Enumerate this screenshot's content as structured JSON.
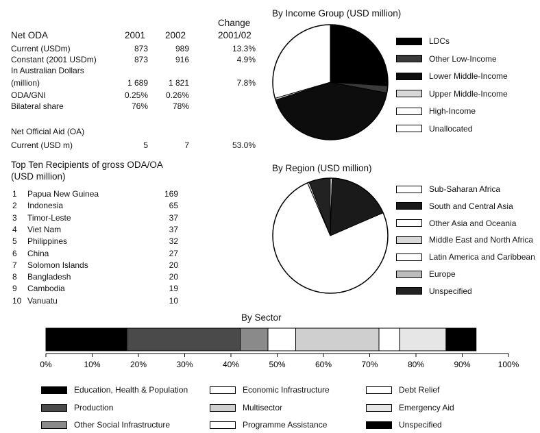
{
  "odaTable": {
    "header_change": "Change",
    "header_label": "Net ODA",
    "header_year1": "2001",
    "header_year2": "2002",
    "header_change_period": "2001/02",
    "rows": [
      {
        "label": "Current (USDm)",
        "v2001": "873",
        "v2002": "989",
        "change": "13.3%"
      },
      {
        "label": "Constant (2001 USDm)",
        "v2001": "873",
        "v2002": "916",
        "change": "4.9%"
      },
      {
        "label": "In Australian Dollars",
        "v2001": "",
        "v2002": "",
        "change": ""
      },
      {
        "label": "(million)",
        "v2001": "1 689",
        "v2002": "1 821",
        "change": "7.8%"
      },
      {
        "label": "ODA/GNI",
        "v2001": "0.25%",
        "v2002": "0.26%",
        "change": ""
      },
      {
        "label": "Bilateral share",
        "v2001": "76%",
        "v2002": "78%",
        "change": ""
      }
    ],
    "oa_title": "Net Official Aid (OA)",
    "oa_row": {
      "label": "Current (USD m)",
      "v2001": "5",
      "v2002": "7",
      "change": "53.0%"
    }
  },
  "recipients": {
    "title_line1": "Top Ten Recipients of gross ODA/OA",
    "title_line2": "(USD million)",
    "items": [
      {
        "rank": "1",
        "name": "Papua New Guinea",
        "value": "169"
      },
      {
        "rank": "2",
        "name": "Indonesia",
        "value": "65"
      },
      {
        "rank": "3",
        "name": "Timor-Leste",
        "value": "37"
      },
      {
        "rank": "4",
        "name": "Viet Nam",
        "value": "37"
      },
      {
        "rank": "5",
        "name": "Philippines",
        "value": "32"
      },
      {
        "rank": "6",
        "name": "China",
        "value": "27"
      },
      {
        "rank": "7",
        "name": "Solomon Islands",
        "value": "20"
      },
      {
        "rank": "8",
        "name": "Bangladesh",
        "value": "20"
      },
      {
        "rank": "9",
        "name": "Cambodia",
        "value": "19"
      },
      {
        "rank": "10",
        "name": "Vanuatu",
        "value": "10"
      }
    ]
  },
  "chart_data": [
    {
      "type": "pie",
      "title": "By Income Group (USD million)",
      "labels": [
        "LDCs",
        "Other Low-Income",
        "Lower Middle-Income",
        "Upper Middle-Income",
        "High-Income",
        "Unallocated"
      ],
      "values": [
        26,
        2,
        42,
        0.5,
        0,
        29.5
      ],
      "fills": [
        "#000000",
        "#3a3a3a",
        "#0d0d0d",
        "#d8d8d8",
        "#ffffff",
        "#ffffff"
      ],
      "legend_position": "right"
    },
    {
      "type": "pie",
      "title": "By Region (USD million)",
      "labels": [
        "Sub-Saharan Africa",
        "South and Central Asia",
        "Other Asia and Oceania",
        "Middle East and North Africa",
        "Latin America and Caribbean",
        "Europe",
        "Unspecified"
      ],
      "values": [
        0.5,
        18,
        75,
        0.5,
        0,
        0,
        6
      ],
      "fills": [
        "#ffffff",
        "#1a1a1a",
        "#ffffff",
        "#d8d8d8",
        "#ffffff",
        "#bbbbbb",
        "#222222"
      ],
      "legend_position": "right"
    },
    {
      "type": "bar",
      "orientation": "horizontal-stacked",
      "title": "By Sector",
      "categories": [
        "Education, Health & Population",
        "Production",
        "Other Social Infrastructure",
        "Economic Infrastructure",
        "Multisector",
        "Programme Assistance",
        "Debt Relief",
        "Emergency Aid",
        "Unspecified"
      ],
      "values": [
        17.5,
        24.5,
        6,
        6,
        18,
        4.5,
        0,
        10,
        6.5
      ],
      "fills": [
        "#000000",
        "#4a4a4a",
        "#8a8a8a",
        "#ffffff",
        "#cfcfcf",
        "#ffffff",
        "#ffffff",
        "#e6e6e6",
        "#000000"
      ],
      "xlim": [
        0,
        100
      ],
      "xticks": [
        "0%",
        "10%",
        "20%",
        "30%",
        "40%",
        "50%",
        "60%",
        "70%",
        "80%",
        "90%",
        "100%"
      ],
      "legend_position": "bottom"
    }
  ]
}
